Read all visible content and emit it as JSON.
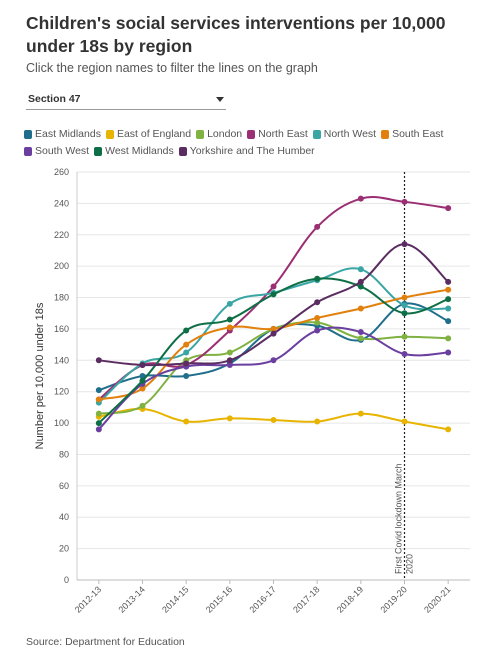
{
  "header": {
    "title": "Children's social services interventions per 10,000 under 18s by region",
    "subtitle": "Click the region names to filter the lines on the graph"
  },
  "filter": {
    "selected": "Section 47"
  },
  "footer": {
    "source": "Source: Department for Education"
  },
  "chart_data": {
    "type": "line",
    "title": "",
    "xlabel": "",
    "ylabel": "Number per 10,000 under 18s",
    "ylim": [
      0,
      260
    ],
    "yticks": [
      0,
      20,
      40,
      60,
      80,
      100,
      120,
      140,
      160,
      180,
      200,
      220,
      240,
      260
    ],
    "grid": true,
    "legend_position": "top",
    "x": [
      "2012-13",
      "2013-14",
      "2014-15",
      "2015-16",
      "2016-17",
      "2017-18",
      "2018-19",
      "2019-20",
      "2020-21"
    ],
    "annotation": {
      "x": "2019-20",
      "label": "First Covid lockdown March 2020"
    },
    "series": [
      {
        "name": "East Midlands",
        "color": "#1f6e8c",
        "values": [
          121,
          130,
          130,
          138,
          160,
          162,
          153,
          176,
          165
        ]
      },
      {
        "name": "East of England",
        "color": "#e8b400",
        "values": [
          104,
          109,
          101,
          103,
          102,
          101,
          106,
          101,
          96
        ]
      },
      {
        "name": "London",
        "color": "#7fb241",
        "values": [
          106,
          111,
          140,
          145,
          160,
          164,
          154,
          155,
          154
        ]
      },
      {
        "name": "North East",
        "color": "#9b2f74",
        "values": [
          115,
          137,
          137,
          159,
          187,
          225,
          243,
          241,
          237
        ]
      },
      {
        "name": "North West",
        "color": "#3aa5a5",
        "values": [
          113,
          138,
          145,
          176,
          183,
          191,
          198,
          175,
          173
        ]
      },
      {
        "name": "South East",
        "color": "#e1800d",
        "values": [
          115,
          122,
          150,
          161,
          160,
          167,
          173,
          180,
          185
        ]
      },
      {
        "name": "South West",
        "color": "#6b3fa0",
        "values": [
          96,
          125,
          136,
          137,
          140,
          159,
          158,
          144,
          145
        ]
      },
      {
        "name": "West Midlands",
        "color": "#0e6e45",
        "values": [
          100,
          127,
          159,
          166,
          182,
          192,
          187,
          170,
          179
        ]
      },
      {
        "name": "Yorkshire and The Humber",
        "color": "#5b2c61",
        "values": [
          140,
          137,
          138,
          140,
          157,
          177,
          190,
          214,
          190
        ]
      }
    ]
  }
}
